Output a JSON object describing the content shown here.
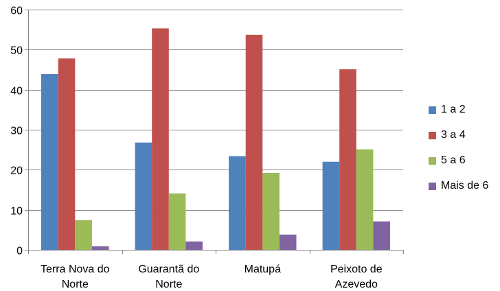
{
  "chart_data": {
    "type": "bar",
    "title": "",
    "xlabel": "",
    "ylabel": "",
    "ylim": [
      0,
      60
    ],
    "yticks": [
      0,
      10,
      20,
      30,
      40,
      50,
      60
    ],
    "grid": true,
    "legend_position": "right",
    "categories": [
      [
        "Terra Nova do",
        "Norte"
      ],
      [
        "Guarantã do",
        "Norte"
      ],
      [
        "Matupá"
      ],
      [
        "Peixoto de",
        "Azevedo"
      ]
    ],
    "series": [
      {
        "name": "1 a 2",
        "color": "#4f81bd",
        "values": [
          43.9,
          26.8,
          23.4,
          22.0
        ]
      },
      {
        "name": "3 a 4",
        "color": "#c0504d",
        "values": [
          47.8,
          55.3,
          53.7,
          45.1
        ]
      },
      {
        "name": "5 a 6",
        "color": "#9bbb59",
        "values": [
          7.4,
          14.1,
          19.2,
          25.1
        ]
      },
      {
        "name": "Mais de 6",
        "color": "#8064a2",
        "values": [
          0.9,
          2.1,
          3.8,
          7.1
        ]
      }
    ]
  }
}
